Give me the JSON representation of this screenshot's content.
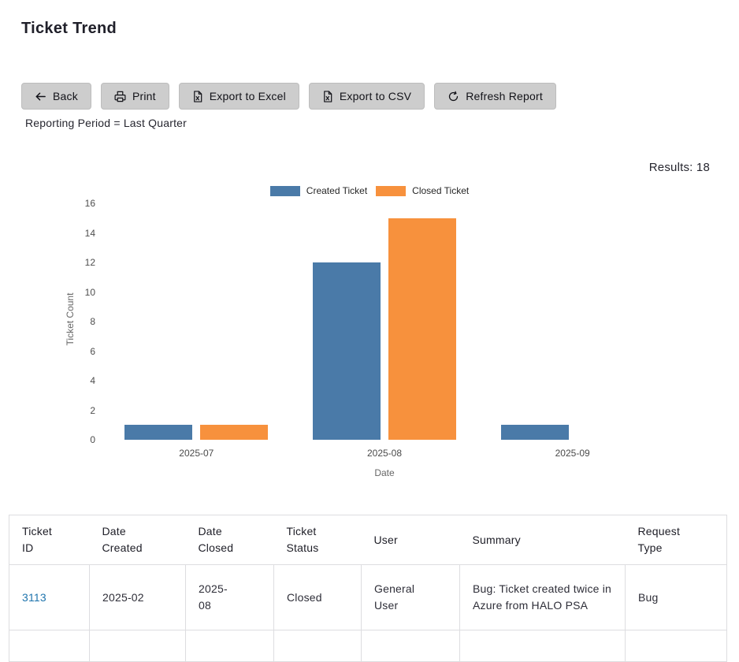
{
  "page": {
    "title": "Ticket Trend"
  },
  "toolbar": {
    "buttons": [
      {
        "label": "Back",
        "icon": "arrow-left-icon"
      },
      {
        "label": "Print",
        "icon": "printer-icon"
      },
      {
        "label": "Export to Excel",
        "icon": "file-excel-icon"
      },
      {
        "label": "Export to CSV",
        "icon": "file-csv-icon"
      },
      {
        "label": "Refresh Report",
        "icon": "refresh-icon"
      }
    ]
  },
  "filters": {
    "reporting_period": "Reporting Period = Last Quarter"
  },
  "results": {
    "label": "Results: 18"
  },
  "chart_data": {
    "type": "bar",
    "title": "",
    "categories": [
      "2025-07",
      "2025-08",
      "2025-09"
    ],
    "series": [
      {
        "name": "Created Ticket",
        "color": "#4a7aa8",
        "values": [
          1,
          12,
          1
        ]
      },
      {
        "name": "Closed Ticket",
        "color": "#f7913d",
        "values": [
          1,
          15,
          0
        ]
      }
    ],
    "xlabel": "Date",
    "ylabel": "Ticket Count",
    "ylim": [
      0,
      16
    ],
    "ytick_step": 2,
    "grid": false,
    "legend_position": "top-center"
  },
  "table": {
    "columns": [
      "Ticket ID",
      "Date Created",
      "Date Closed",
      "Ticket Status",
      "User",
      "Summary",
      "Request Type"
    ],
    "rows": [
      {
        "ticket_id": "3113",
        "date_created": "2025-02",
        "date_closed": "2025-08",
        "ticket_status": "Closed",
        "user": "General User",
        "summary": "Bug: Ticket created twice in Azure from HALO PSA",
        "request_type": "Bug"
      }
    ]
  }
}
